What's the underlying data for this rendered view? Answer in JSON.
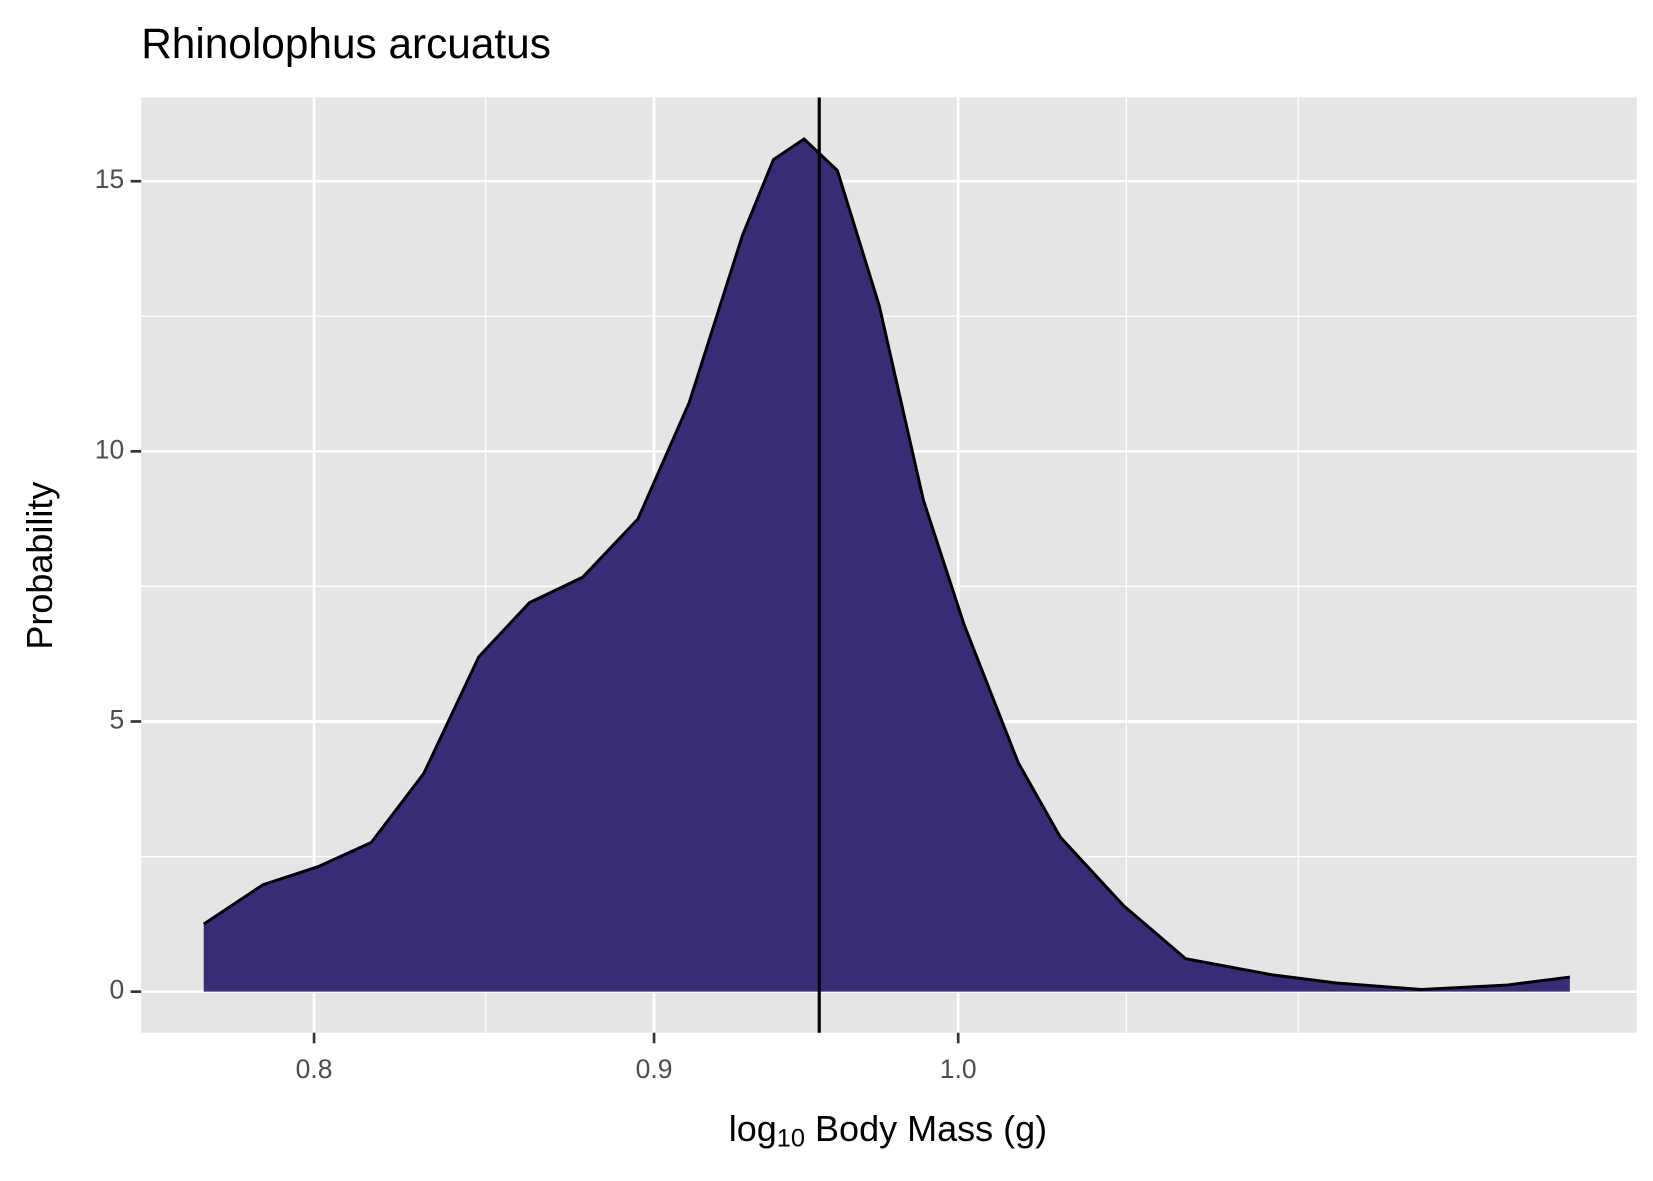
{
  "chart_data": {
    "type": "density",
    "title": "Rhinolophus arcuatus",
    "x_label": {
      "prefix": "log",
      "subscript": "10",
      "rest": " Body Mass (g)"
    },
    "y_label": "Probability",
    "x": [
      0.77,
      0.786,
      0.801,
      0.816,
      0.831,
      0.847,
      0.862,
      0.878,
      0.895,
      0.911,
      0.928,
      0.938,
      0.948,
      0.959,
      0.973,
      0.988,
      1.002,
      1.021,
      1.036,
      1.059,
      1.082,
      1.115,
      1.14,
      1.174,
      1.209,
      1.236
    ],
    "values": [
      1.25,
      1.98,
      2.31,
      2.76,
      4.04,
      6.2,
      7.2,
      7.67,
      8.75,
      10.9,
      14.0,
      15.4,
      15.78,
      15.2,
      12.7,
      9.1,
      6.8,
      4.24,
      2.86,
      1.59,
      0.61,
      0.31,
      0.16,
      0.04,
      0.12,
      0.27
    ],
    "color": "#3a2b77",
    "vline": 0.953,
    "x_log": true,
    "xlim": [
      0.7535,
      1.265
    ],
    "xticks": [
      {
        "value": 0.8,
        "label": "0.8"
      },
      {
        "value": 0.9,
        "label": "0.9"
      },
      {
        "value": 1.0,
        "label": "1.0"
      }
    ],
    "xminor": [
      0.849,
      1.06,
      1.125
    ],
    "ylim": [
      -0.76,
      16.55
    ],
    "yticks": [
      0,
      5,
      10,
      15
    ],
    "yminor": [
      2.5,
      7.5,
      12.5
    ],
    "grid": true
  }
}
